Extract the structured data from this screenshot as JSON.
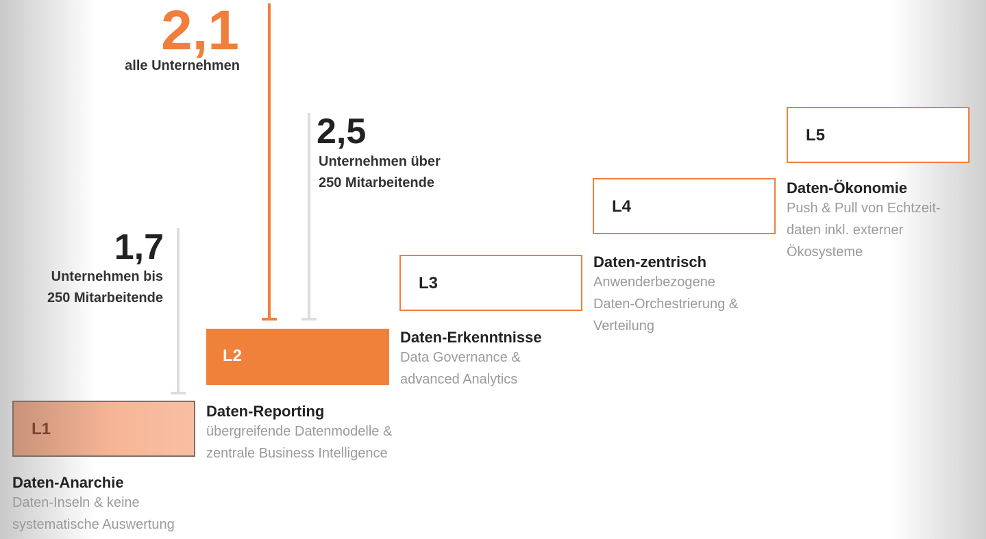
{
  "levels": [
    {
      "label": "L1",
      "title": "Daten-Anarchie",
      "description": [
        "Daten-Inseln & keine",
        "systematische Auswertung"
      ]
    },
    {
      "label": "L2",
      "title": "Daten-Reporting",
      "description": [
        "übergreifende Datenmodelle &",
        "zentrale Business Intelligence"
      ]
    },
    {
      "label": "L3",
      "title": "Daten-Erkenntnisse",
      "description": [
        "Data Governance &",
        "advanced Analytics"
      ]
    },
    {
      "label": "L4",
      "title": "Daten-zentrisch",
      "description": [
        "Anwenderbezogene",
        "Daten-Orchestrierung &",
        "Verteilung"
      ]
    },
    {
      "label": "L5",
      "title": "Daten-Ökonomie",
      "description": [
        "Push & Pull von Echtzeit-",
        "daten inkl. externer",
        "Ökosysteme"
      ]
    }
  ],
  "markers": [
    {
      "value": "2,1",
      "caption": [
        "alle Unternehmen"
      ]
    },
    {
      "value": "2,5",
      "caption": [
        "Unternehmen über",
        "250 Mitarbeitende"
      ]
    },
    {
      "value": "1,7",
      "caption": [
        "Unternehmen bis",
        "250 Mitarbeitende"
      ]
    }
  ]
}
